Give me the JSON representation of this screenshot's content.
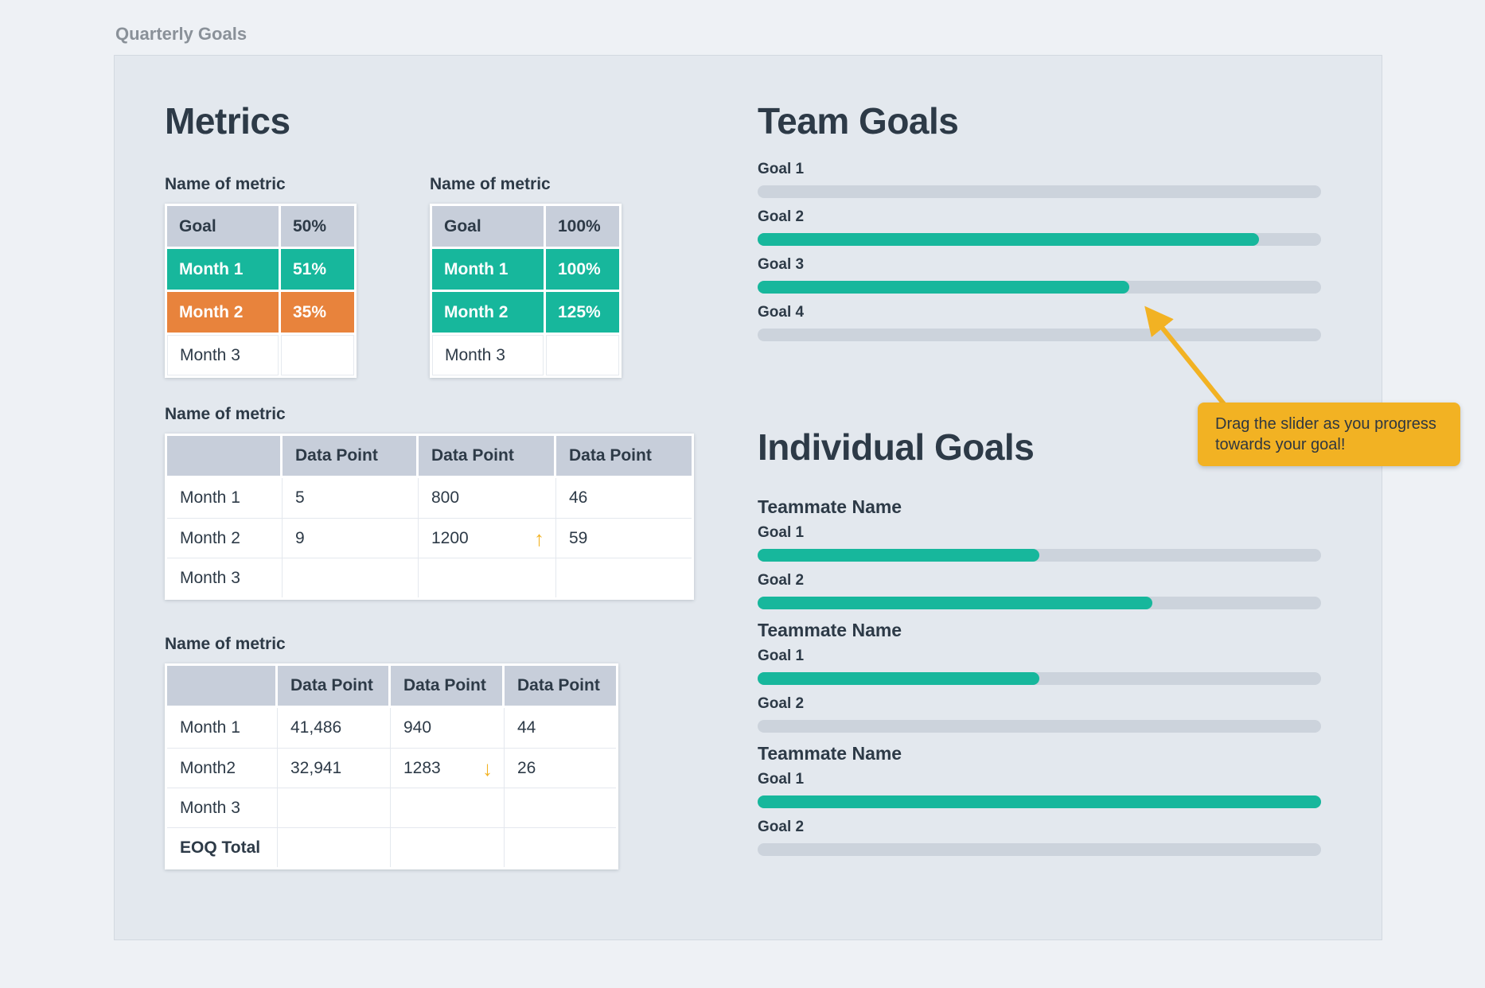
{
  "page": {
    "title": "Quarterly Goals"
  },
  "colors": {
    "teal": "#17B79C",
    "orange": "#E8833C",
    "yellow": "#F2B223",
    "track": "#CCD3DC",
    "header_cell": "#C7CEDA",
    "dark": "#2D3A47",
    "panel_bg": "#E3E8EE",
    "page_bg": "#EEF1F5"
  },
  "metrics": {
    "heading": "Metrics",
    "small_tables": [
      {
        "label": "Name of metric",
        "rows": [
          {
            "name": "Goal",
            "value": "50%",
            "style": "header"
          },
          {
            "name": "Month 1",
            "value": "51%",
            "style": "teal"
          },
          {
            "name": "Month 2",
            "value": "35%",
            "style": "orange"
          },
          {
            "name": "Month 3",
            "value": "",
            "style": "plain"
          }
        ]
      },
      {
        "label": "Name of metric",
        "rows": [
          {
            "name": "Goal",
            "value": "100%",
            "style": "header"
          },
          {
            "name": "Month 1",
            "value": "100%",
            "style": "teal"
          },
          {
            "name": "Month 2",
            "value": "125%",
            "style": "teal"
          },
          {
            "name": "Month 3",
            "value": "",
            "style": "plain"
          }
        ]
      }
    ],
    "data_tables": [
      {
        "label": "Name of metric",
        "headers": [
          "",
          "Data Point",
          "Data Point",
          "Data Point"
        ],
        "rows": [
          {
            "name": "Month 1",
            "cells": [
              "5",
              "800",
              "46"
            ]
          },
          {
            "name": "Month 2",
            "cells": [
              "9",
              "1200",
              "59"
            ],
            "trend": {
              "col": 1,
              "dir": "up"
            }
          },
          {
            "name": "Month 3",
            "cells": [
              "",
              "",
              ""
            ]
          }
        ]
      },
      {
        "label": "Name of metric",
        "headers": [
          "",
          "Data Point",
          "Data Point",
          "Data Point"
        ],
        "rows": [
          {
            "name": "Month 1",
            "cells": [
              "41,486",
              "940",
              "44"
            ]
          },
          {
            "name": "Month2",
            "cells": [
              "32,941",
              "1283",
              "26"
            ],
            "trend": {
              "col": 1,
              "dir": "down"
            }
          },
          {
            "name": "Month 3",
            "cells": [
              "",
              "",
              ""
            ]
          },
          {
            "name": "EOQ Total",
            "cells": [
              "",
              "",
              ""
            ],
            "bold": true
          }
        ]
      }
    ]
  },
  "team_goals": {
    "heading": "Team Goals",
    "goals": [
      {
        "label": "Goal 1",
        "progress": 0
      },
      {
        "label": "Goal 2",
        "progress": 89
      },
      {
        "label": "Goal 3",
        "progress": 66
      },
      {
        "label": "Goal 4",
        "progress": 0
      }
    ]
  },
  "tooltip": {
    "text": "Drag the slider as you progress towards your goal!"
  },
  "individual_goals": {
    "heading": "Individual Goals",
    "teammates": [
      {
        "name": "Teammate Name",
        "goals": [
          {
            "label": "Goal 1",
            "progress": 50
          },
          {
            "label": "Goal 2",
            "progress": 70
          }
        ]
      },
      {
        "name": "Teammate Name",
        "goals": [
          {
            "label": "Goal 1",
            "progress": 50
          },
          {
            "label": "Goal 2",
            "progress": 0
          }
        ]
      },
      {
        "name": "Teammate Name",
        "goals": [
          {
            "label": "Goal 1",
            "progress": 100
          },
          {
            "label": "Goal 2",
            "progress": 0
          }
        ]
      }
    ]
  }
}
